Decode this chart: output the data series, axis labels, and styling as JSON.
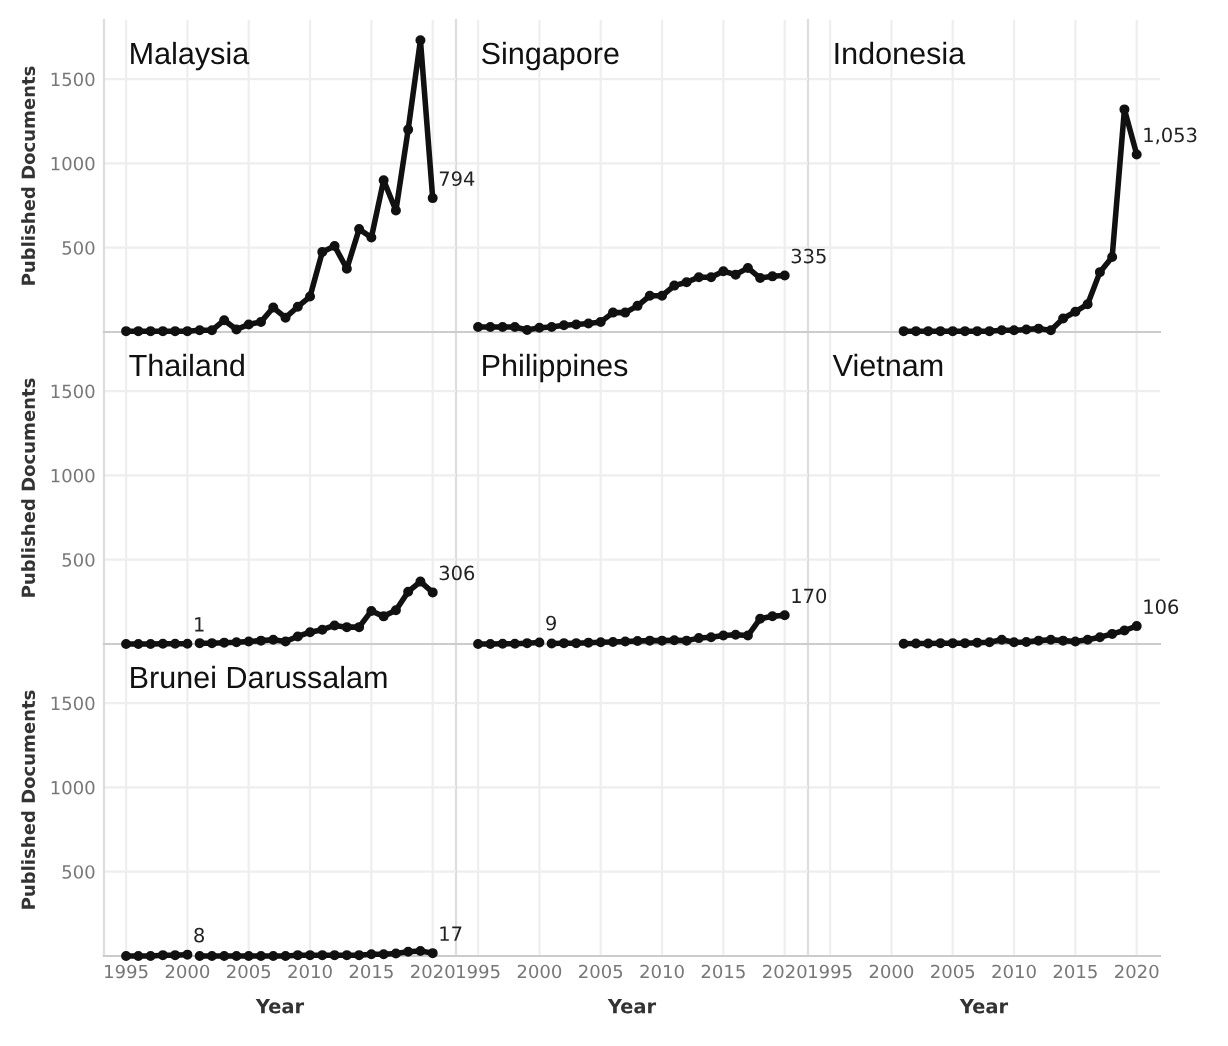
{
  "chart_data": [
    {
      "type": "line",
      "title": "Malaysia",
      "ylabel": "Published Documents",
      "xlim": [
        1993.2,
        2021.9
      ],
      "xticks": [
        1995,
        2000,
        2005,
        2010,
        2015,
        2020
      ],
      "ylim": [
        0,
        1850
      ],
      "yticks": [
        500,
        1000,
        1500
      ],
      "grid": true,
      "marker": "circle",
      "line_style": "solid",
      "tick_labels": "y",
      "series": [
        {
          "color": "#111111",
          "x": [
            1995,
            1996,
            1997,
            1998,
            1999,
            2000,
            2001,
            2002,
            2003,
            2004,
            2005,
            2006,
            2007,
            2008,
            2009,
            2010,
            2011,
            2012,
            2013,
            2014,
            2015,
            2016,
            2017,
            2018,
            2019,
            2020
          ],
          "values": [
            5,
            5,
            5,
            5,
            5,
            5,
            10,
            10,
            70,
            15,
            45,
            60,
            145,
            85,
            150,
            210,
            475,
            510,
            375,
            610,
            560,
            900,
            720,
            1200,
            1730,
            794
          ],
          "value_labels": [
            null,
            null,
            null,
            null,
            null,
            null,
            null,
            null,
            null,
            null,
            null,
            null,
            null,
            null,
            null,
            null,
            null,
            null,
            null,
            null,
            null,
            null,
            null,
            null,
            null,
            "794"
          ]
        }
      ]
    },
    {
      "type": "line",
      "title": "Singapore",
      "xlim": [
        1993.2,
        2021.9
      ],
      "xticks": [
        1995,
        2000,
        2005,
        2010,
        2015,
        2020
      ],
      "ylim": [
        0,
        1850
      ],
      "yticks": [
        500,
        1000,
        1500
      ],
      "grid": true,
      "marker": "circle",
      "line_style": "solid",
      "tick_labels": false,
      "series": [
        {
          "color": "#111111",
          "x": [
            1995,
            1996,
            1997,
            1998,
            1999,
            2000,
            2001,
            2002,
            2003,
            2004,
            2005,
            2006,
            2007,
            2008,
            2009,
            2010,
            2011,
            2012,
            2013,
            2014,
            2015,
            2016,
            2017,
            2018,
            2019,
            2020
          ],
          "values": [
            30,
            30,
            30,
            30,
            12,
            25,
            30,
            40,
            45,
            50,
            60,
            115,
            115,
            155,
            215,
            215,
            275,
            295,
            325,
            325,
            360,
            340,
            380,
            320,
            330,
            335
          ],
          "value_labels": [
            null,
            null,
            null,
            null,
            null,
            null,
            null,
            null,
            null,
            null,
            null,
            null,
            null,
            null,
            null,
            null,
            null,
            null,
            null,
            null,
            null,
            null,
            null,
            null,
            null,
            "335"
          ]
        }
      ]
    },
    {
      "type": "line",
      "title": "Indonesia",
      "xlim": [
        1993.2,
        2021.9
      ],
      "xticks": [
        1995,
        2000,
        2005,
        2010,
        2015,
        2020
      ],
      "ylim": [
        0,
        1850
      ],
      "yticks": [
        500,
        1000,
        1500
      ],
      "grid": true,
      "marker": "circle",
      "line_style": "solid",
      "tick_labels": false,
      "series": [
        {
          "color": "#111111",
          "x": [
            2001,
            2002,
            2003,
            2004,
            2005,
            2006,
            2007,
            2008,
            2009,
            2010,
            2011,
            2012,
            2013,
            2014,
            2015,
            2016,
            2017,
            2018,
            2019,
            2020
          ],
          "values": [
            5,
            5,
            5,
            5,
            5,
            5,
            5,
            5,
            10,
            10,
            15,
            20,
            10,
            80,
            120,
            165,
            355,
            445,
            1320,
            1053
          ],
          "value_labels": [
            null,
            null,
            null,
            null,
            null,
            null,
            null,
            null,
            null,
            null,
            null,
            null,
            null,
            null,
            null,
            null,
            null,
            null,
            null,
            "1,053"
          ]
        }
      ]
    },
    {
      "type": "line",
      "title": "Thailand",
      "ylabel": "Published Documents",
      "xlim": [
        1993.2,
        2021.9
      ],
      "xticks": [
        1995,
        2000,
        2005,
        2010,
        2015,
        2020
      ],
      "ylim": [
        0,
        1850
      ],
      "yticks": [
        500,
        1000,
        1500
      ],
      "grid": true,
      "marker": "circle",
      "line_style": "solid",
      "tick_labels": "y",
      "series": [
        {
          "color": "#111111",
          "x": [
            1995,
            1996,
            1997,
            1998,
            1999,
            2000
          ],
          "values": [
            0,
            0,
            0,
            1,
            1,
            1
          ],
          "value_labels": [
            null,
            null,
            null,
            null,
            null,
            "1"
          ]
        },
        {
          "color": "#111111",
          "x": [
            2001,
            2002,
            2003,
            2004,
            2005,
            2006,
            2007,
            2008,
            2009,
            2010,
            2011,
            2012,
            2013,
            2014,
            2015,
            2016,
            2017,
            2018,
            2019,
            2020
          ],
          "values": [
            5,
            5,
            8,
            10,
            15,
            20,
            25,
            15,
            45,
            70,
            85,
            110,
            100,
            100,
            196,
            164,
            200,
            310,
            370,
            306
          ],
          "value_labels": [
            null,
            null,
            null,
            null,
            null,
            null,
            null,
            null,
            null,
            null,
            null,
            null,
            null,
            null,
            null,
            null,
            null,
            null,
            null,
            "306"
          ]
        }
      ]
    },
    {
      "type": "line",
      "title": "Philippines",
      "xlim": [
        1993.2,
        2021.9
      ],
      "xticks": [
        1995,
        2000,
        2005,
        2010,
        2015,
        2020
      ],
      "ylim": [
        0,
        1850
      ],
      "yticks": [
        500,
        1000,
        1500
      ],
      "grid": true,
      "marker": "circle",
      "line_style": "solid",
      "tick_labels": false,
      "series": [
        {
          "color": "#111111",
          "x": [
            1995,
            1996,
            1997,
            1998,
            1999,
            2000
          ],
          "values": [
            0,
            0,
            1,
            2,
            5,
            9
          ],
          "value_labels": [
            null,
            null,
            null,
            null,
            null,
            "9"
          ]
        },
        {
          "color": "#111111",
          "x": [
            2001,
            2002,
            2003,
            2004,
            2005,
            2006,
            2007,
            2008,
            2009,
            2010,
            2011,
            2012,
            2013,
            2014,
            2015,
            2016,
            2017,
            2018,
            2019,
            2020
          ],
          "values": [
            3,
            5,
            5,
            8,
            10,
            12,
            15,
            18,
            20,
            20,
            22,
            20,
            35,
            40,
            50,
            55,
            50,
            150,
            165,
            170
          ],
          "value_labels": [
            null,
            null,
            null,
            null,
            null,
            null,
            null,
            null,
            null,
            null,
            null,
            null,
            null,
            null,
            null,
            null,
            null,
            null,
            null,
            "170"
          ]
        }
      ]
    },
    {
      "type": "line",
      "title": "Vietnam",
      "xlim": [
        1993.2,
        2021.9
      ],
      "xticks": [
        1995,
        2000,
        2005,
        2010,
        2015,
        2020
      ],
      "ylim": [
        0,
        1850
      ],
      "yticks": [
        500,
        1000,
        1500
      ],
      "grid": true,
      "marker": "circle",
      "line_style": "solid",
      "tick_labels": false,
      "series": [
        {
          "color": "#111111",
          "x": [
            2001,
            2002,
            2003,
            2004,
            2005,
            2006,
            2007,
            2008,
            2009,
            2010,
            2011,
            2012,
            2013,
            2014,
            2015,
            2016,
            2017,
            2018,
            2019,
            2020
          ],
          "values": [
            2,
            3,
            3,
            5,
            5,
            5,
            8,
            10,
            25,
            10,
            12,
            20,
            25,
            20,
            15,
            25,
            40,
            60,
            80,
            106
          ],
          "value_labels": [
            null,
            null,
            null,
            null,
            null,
            null,
            null,
            null,
            null,
            null,
            null,
            null,
            null,
            null,
            null,
            null,
            null,
            null,
            null,
            "106"
          ]
        }
      ]
    },
    {
      "type": "line",
      "title": "Brunei Darussalam",
      "ylabel": "Published Documents",
      "xlabel": "Year",
      "xlim": [
        1993.2,
        2021.9
      ],
      "xticks": [
        1995,
        2000,
        2005,
        2010,
        2015,
        2020
      ],
      "ylim": [
        0,
        1850
      ],
      "yticks": [
        500,
        1000,
        1500
      ],
      "grid": true,
      "marker": "circle",
      "line_style": "solid",
      "series": [
        {
          "color": "#111111",
          "x": [
            1995,
            1996,
            1997,
            1998,
            1999,
            2000
          ],
          "values": [
            0,
            0,
            0,
            5,
            5,
            8
          ],
          "value_labels": [
            null,
            null,
            null,
            null,
            null,
            "8"
          ]
        },
        {
          "color": "#111111",
          "x": [
            2001,
            2002,
            2003,
            2004,
            2005,
            2006,
            2007,
            2008,
            2009,
            2010,
            2011,
            2012,
            2013,
            2014,
            2015,
            2016,
            2017,
            2018,
            2019,
            2020
          ],
          "values": [
            0,
            0,
            0,
            0,
            0,
            0,
            0,
            0,
            5,
            5,
            5,
            5,
            5,
            5,
            10,
            10,
            15,
            25,
            30,
            17
          ],
          "value_labels": [
            null,
            null,
            null,
            null,
            null,
            null,
            null,
            null,
            null,
            null,
            null,
            null,
            null,
            null,
            null,
            null,
            null,
            null,
            null,
            "17"
          ]
        }
      ]
    },
    {
      "type": "line",
      "xlabel": "Year",
      "xlim": [
        1993.2,
        2021.9
      ],
      "xticks": [
        1995,
        2000,
        2005,
        2010,
        2015,
        2020
      ],
      "ylim": [
        0,
        1850
      ],
      "yticks": [
        500,
        1000,
        1500
      ],
      "grid": true,
      "tick_labels": "x"
    },
    {
      "type": "line",
      "xlabel": "Year",
      "xlim": [
        1993.2,
        2021.9
      ],
      "xticks": [
        1995,
        2000,
        2005,
        2010,
        2015,
        2020
      ],
      "ylim": [
        0,
        1850
      ],
      "yticks": [
        500,
        1000,
        1500
      ],
      "grid": true,
      "tick_labels": "x"
    }
  ]
}
